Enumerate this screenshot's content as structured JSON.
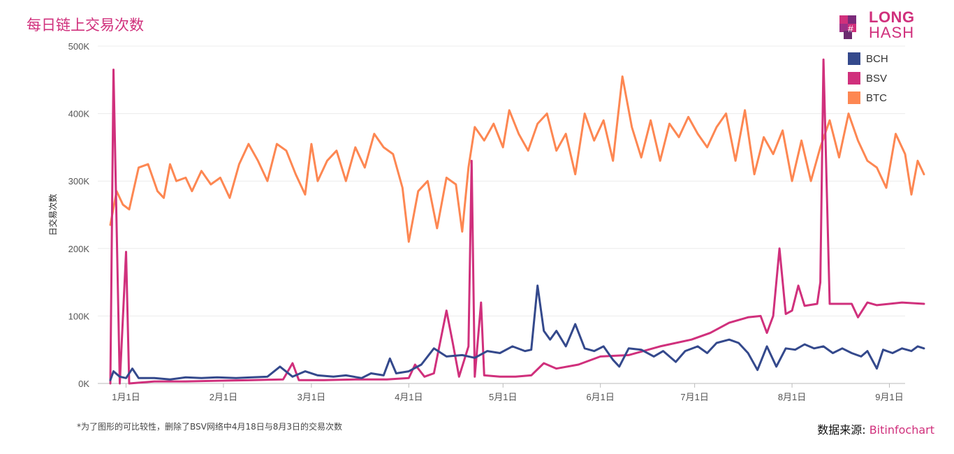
{
  "title": "每日链上交易次数",
  "logo": {
    "line1": "LONG",
    "line2": "HASH"
  },
  "footnote": "*为了图形的可比较性，删除了BSV网络中4月18日与8月3日的交易次数",
  "source": {
    "label": "数据来源:",
    "value": "Bitinfochart"
  },
  "colors": {
    "accent": "#d0307c",
    "BCH": "#34498c",
    "BSV": "#d0307c",
    "BTC": "#fd8752"
  },
  "chart_data": {
    "type": "line",
    "ylabel": "日交易次数",
    "ylim": [
      0,
      500000
    ],
    "yticks": [
      {
        "value": 0,
        "label": "0K"
      },
      {
        "value": 100000,
        "label": "100K"
      },
      {
        "value": 200000,
        "label": "200K"
      },
      {
        "value": 300000,
        "label": "300K"
      },
      {
        "value": 400000,
        "label": "400K"
      },
      {
        "value": 500000,
        "label": "500K"
      }
    ],
    "xlim": [
      "2018-12-23",
      "2019-09-06"
    ],
    "xticks": [
      {
        "date": "2019-01-01",
        "label": "1月1日"
      },
      {
        "date": "2019-02-01",
        "label": "2月1日"
      },
      {
        "date": "2019-03-01",
        "label": "3月1日"
      },
      {
        "date": "2019-04-01",
        "label": "4月1日"
      },
      {
        "date": "2019-05-01",
        "label": "5月1日"
      },
      {
        "date": "2019-06-01",
        "label": "6月1日"
      },
      {
        "date": "2019-07-01",
        "label": "7月1日"
      },
      {
        "date": "2019-08-01",
        "label": "8月1日"
      },
      {
        "date": "2019-09-01",
        "label": "9月1日"
      }
    ],
    "legend_position": "top-right",
    "series": [
      {
        "name": "BCH",
        "points": [
          [
            "2018-12-27",
            5000
          ],
          [
            "2018-12-28",
            18000
          ],
          [
            "2018-12-30",
            10000
          ],
          [
            "2019-01-01",
            8000
          ],
          [
            "2019-01-03",
            22000
          ],
          [
            "2019-01-05",
            8000
          ],
          [
            "2019-01-10",
            8000
          ],
          [
            "2019-01-15",
            6000
          ],
          [
            "2019-01-20",
            9000
          ],
          [
            "2019-01-25",
            8000
          ],
          [
            "2019-01-30",
            9000
          ],
          [
            "2019-02-05",
            8000
          ],
          [
            "2019-02-10",
            9000
          ],
          [
            "2019-02-15",
            10000
          ],
          [
            "2019-02-19",
            25000
          ],
          [
            "2019-02-23",
            10000
          ],
          [
            "2019-02-27",
            18000
          ],
          [
            "2019-03-03",
            12000
          ],
          [
            "2019-03-08",
            10000
          ],
          [
            "2019-03-12",
            12000
          ],
          [
            "2019-03-17",
            8000
          ],
          [
            "2019-03-20",
            15000
          ],
          [
            "2019-03-24",
            12000
          ],
          [
            "2019-03-26",
            37000
          ],
          [
            "2019-03-28",
            15000
          ],
          [
            "2019-04-01",
            18000
          ],
          [
            "2019-04-05",
            28000
          ],
          [
            "2019-04-09",
            52000
          ],
          [
            "2019-04-13",
            40000
          ],
          [
            "2019-04-18",
            42000
          ],
          [
            "2019-04-22",
            38000
          ],
          [
            "2019-04-26",
            48000
          ],
          [
            "2019-04-30",
            45000
          ],
          [
            "2019-05-04",
            55000
          ],
          [
            "2019-05-08",
            48000
          ],
          [
            "2019-05-10",
            50000
          ],
          [
            "2019-05-12",
            145000
          ],
          [
            "2019-05-14",
            78000
          ],
          [
            "2019-05-16",
            65000
          ],
          [
            "2019-05-18",
            78000
          ],
          [
            "2019-05-21",
            55000
          ],
          [
            "2019-05-24",
            88000
          ],
          [
            "2019-05-27",
            52000
          ],
          [
            "2019-05-30",
            48000
          ],
          [
            "2019-06-02",
            55000
          ],
          [
            "2019-06-05",
            35000
          ],
          [
            "2019-06-07",
            25000
          ],
          [
            "2019-06-10",
            52000
          ],
          [
            "2019-06-14",
            50000
          ],
          [
            "2019-06-18",
            40000
          ],
          [
            "2019-06-21",
            48000
          ],
          [
            "2019-06-25",
            32000
          ],
          [
            "2019-06-28",
            48000
          ],
          [
            "2019-07-02",
            55000
          ],
          [
            "2019-07-05",
            45000
          ],
          [
            "2019-07-08",
            60000
          ],
          [
            "2019-07-12",
            65000
          ],
          [
            "2019-07-15",
            60000
          ],
          [
            "2019-07-18",
            45000
          ],
          [
            "2019-07-21",
            20000
          ],
          [
            "2019-07-24",
            55000
          ],
          [
            "2019-07-27",
            25000
          ],
          [
            "2019-07-30",
            52000
          ],
          [
            "2019-08-02",
            50000
          ],
          [
            "2019-08-05",
            58000
          ],
          [
            "2019-08-08",
            52000
          ],
          [
            "2019-08-11",
            55000
          ],
          [
            "2019-08-14",
            45000
          ],
          [
            "2019-08-17",
            52000
          ],
          [
            "2019-08-20",
            45000
          ],
          [
            "2019-08-23",
            40000
          ],
          [
            "2019-08-25",
            48000
          ],
          [
            "2019-08-28",
            22000
          ],
          [
            "2019-08-30",
            50000
          ],
          [
            "2019-09-02",
            45000
          ],
          [
            "2019-09-05",
            52000
          ],
          [
            "2019-09-08",
            48000
          ],
          [
            "2019-09-10",
            55000
          ],
          [
            "2019-09-12",
            52000
          ]
        ]
      },
      {
        "name": "BSV",
        "points": [
          [
            "2018-12-27",
            0
          ],
          [
            "2018-12-28",
            465000
          ],
          [
            "2018-12-30",
            0
          ],
          [
            "2019-01-01",
            195000
          ],
          [
            "2019-01-02",
            0
          ],
          [
            "2019-01-10",
            3000
          ],
          [
            "2019-01-20",
            3000
          ],
          [
            "2019-01-30",
            4000
          ],
          [
            "2019-02-10",
            5000
          ],
          [
            "2019-02-20",
            6000
          ],
          [
            "2019-02-23",
            30000
          ],
          [
            "2019-02-25",
            5000
          ],
          [
            "2019-03-05",
            5000
          ],
          [
            "2019-03-15",
            6000
          ],
          [
            "2019-03-25",
            6000
          ],
          [
            "2019-04-01",
            8000
          ],
          [
            "2019-04-03",
            28000
          ],
          [
            "2019-04-06",
            10000
          ],
          [
            "2019-04-09",
            15000
          ],
          [
            "2019-04-13",
            108000
          ],
          [
            "2019-04-15",
            60000
          ],
          [
            "2019-04-17",
            10000
          ],
          [
            "2019-04-20",
            55000
          ],
          [
            "2019-04-21",
            330000
          ],
          [
            "2019-04-22",
            10000
          ],
          [
            "2019-04-24",
            120000
          ],
          [
            "2019-04-25",
            12000
          ],
          [
            "2019-04-30",
            10000
          ],
          [
            "2019-05-05",
            10000
          ],
          [
            "2019-05-10",
            12000
          ],
          [
            "2019-05-14",
            30000
          ],
          [
            "2019-05-18",
            22000
          ],
          [
            "2019-05-25",
            28000
          ],
          [
            "2019-06-01",
            40000
          ],
          [
            "2019-06-10",
            42000
          ],
          [
            "2019-06-20",
            55000
          ],
          [
            "2019-06-30",
            65000
          ],
          [
            "2019-07-06",
            75000
          ],
          [
            "2019-07-12",
            90000
          ],
          [
            "2019-07-18",
            98000
          ],
          [
            "2019-07-22",
            100000
          ],
          [
            "2019-07-24",
            75000
          ],
          [
            "2019-07-26",
            100000
          ],
          [
            "2019-07-28",
            200000
          ],
          [
            "2019-07-30",
            103000
          ],
          [
            "2019-08-01",
            108000
          ],
          [
            "2019-08-03",
            145000
          ],
          [
            "2019-08-05",
            115000
          ],
          [
            "2019-08-09",
            118000
          ],
          [
            "2019-08-10",
            150000
          ],
          [
            "2019-08-11",
            480000
          ],
          [
            "2019-08-13",
            118000
          ],
          [
            "2019-08-20",
            118000
          ],
          [
            "2019-08-22",
            98000
          ],
          [
            "2019-08-25",
            120000
          ],
          [
            "2019-08-28",
            116000
          ],
          [
            "2019-09-05",
            120000
          ],
          [
            "2019-09-12",
            118000
          ]
        ]
      },
      {
        "name": "BTC",
        "points": [
          [
            "2018-12-27",
            235000
          ],
          [
            "2018-12-29",
            285000
          ],
          [
            "2018-12-31",
            265000
          ],
          [
            "2019-01-02",
            258000
          ],
          [
            "2019-01-05",
            320000
          ],
          [
            "2019-01-08",
            325000
          ],
          [
            "2019-01-11",
            285000
          ],
          [
            "2019-01-13",
            275000
          ],
          [
            "2019-01-15",
            325000
          ],
          [
            "2019-01-17",
            300000
          ],
          [
            "2019-01-20",
            305000
          ],
          [
            "2019-01-22",
            285000
          ],
          [
            "2019-01-25",
            315000
          ],
          [
            "2019-01-28",
            295000
          ],
          [
            "2019-01-31",
            305000
          ],
          [
            "2019-02-03",
            275000
          ],
          [
            "2019-02-06",
            325000
          ],
          [
            "2019-02-09",
            355000
          ],
          [
            "2019-02-12",
            330000
          ],
          [
            "2019-02-15",
            300000
          ],
          [
            "2019-02-18",
            355000
          ],
          [
            "2019-02-21",
            345000
          ],
          [
            "2019-02-24",
            310000
          ],
          [
            "2019-02-27",
            280000
          ],
          [
            "2019-03-01",
            355000
          ],
          [
            "2019-03-03",
            300000
          ],
          [
            "2019-03-06",
            330000
          ],
          [
            "2019-03-09",
            345000
          ],
          [
            "2019-03-12",
            300000
          ],
          [
            "2019-03-15",
            350000
          ],
          [
            "2019-03-18",
            320000
          ],
          [
            "2019-03-21",
            370000
          ],
          [
            "2019-03-24",
            350000
          ],
          [
            "2019-03-27",
            340000
          ],
          [
            "2019-03-30",
            290000
          ],
          [
            "2019-04-01",
            210000
          ],
          [
            "2019-04-04",
            285000
          ],
          [
            "2019-04-07",
            300000
          ],
          [
            "2019-04-10",
            230000
          ],
          [
            "2019-04-13",
            305000
          ],
          [
            "2019-04-16",
            295000
          ],
          [
            "2019-04-18",
            225000
          ],
          [
            "2019-04-20",
            320000
          ],
          [
            "2019-04-22",
            380000
          ],
          [
            "2019-04-25",
            360000
          ],
          [
            "2019-04-28",
            385000
          ],
          [
            "2019-05-01",
            350000
          ],
          [
            "2019-05-03",
            405000
          ],
          [
            "2019-05-06",
            370000
          ],
          [
            "2019-05-09",
            345000
          ],
          [
            "2019-05-12",
            385000
          ],
          [
            "2019-05-15",
            400000
          ],
          [
            "2019-05-18",
            345000
          ],
          [
            "2019-05-21",
            370000
          ],
          [
            "2019-05-24",
            310000
          ],
          [
            "2019-05-27",
            400000
          ],
          [
            "2019-05-30",
            360000
          ],
          [
            "2019-06-02",
            390000
          ],
          [
            "2019-06-05",
            330000
          ],
          [
            "2019-06-08",
            455000
          ],
          [
            "2019-06-11",
            380000
          ],
          [
            "2019-06-14",
            335000
          ],
          [
            "2019-06-17",
            390000
          ],
          [
            "2019-06-20",
            330000
          ],
          [
            "2019-06-23",
            385000
          ],
          [
            "2019-06-26",
            365000
          ],
          [
            "2019-06-29",
            395000
          ],
          [
            "2019-07-02",
            370000
          ],
          [
            "2019-07-05",
            350000
          ],
          [
            "2019-07-08",
            380000
          ],
          [
            "2019-07-11",
            400000
          ],
          [
            "2019-07-14",
            330000
          ],
          [
            "2019-07-17",
            405000
          ],
          [
            "2019-07-20",
            310000
          ],
          [
            "2019-07-23",
            365000
          ],
          [
            "2019-07-26",
            340000
          ],
          [
            "2019-07-29",
            375000
          ],
          [
            "2019-08-01",
            300000
          ],
          [
            "2019-08-04",
            360000
          ],
          [
            "2019-08-07",
            300000
          ],
          [
            "2019-08-10",
            350000
          ],
          [
            "2019-08-13",
            390000
          ],
          [
            "2019-08-16",
            335000
          ],
          [
            "2019-08-19",
            400000
          ],
          [
            "2019-08-22",
            360000
          ],
          [
            "2019-08-25",
            330000
          ],
          [
            "2019-08-28",
            320000
          ],
          [
            "2019-08-31",
            290000
          ],
          [
            "2019-09-03",
            370000
          ],
          [
            "2019-09-06",
            340000
          ],
          [
            "2019-09-08",
            280000
          ],
          [
            "2019-09-10",
            330000
          ],
          [
            "2019-09-12",
            310000
          ]
        ]
      }
    ]
  }
}
